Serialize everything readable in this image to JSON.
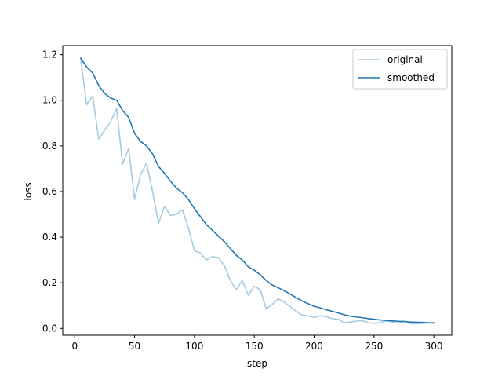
{
  "chart_data": {
    "type": "line",
    "title": "",
    "xlabel": "step",
    "ylabel": "loss",
    "xlim": [
      -10,
      315
    ],
    "ylim": [
      -0.03,
      1.24
    ],
    "xticks": [
      0,
      50,
      100,
      150,
      200,
      250,
      300
    ],
    "yticks": [
      0.0,
      0.2,
      0.4,
      0.6,
      0.8,
      1.0,
      1.2
    ],
    "grid": false,
    "legend_position": "top-right",
    "x": [
      5,
      10,
      15,
      20,
      25,
      30,
      35,
      40,
      45,
      50,
      55,
      60,
      65,
      70,
      75,
      80,
      85,
      90,
      95,
      100,
      105,
      110,
      115,
      120,
      125,
      130,
      135,
      140,
      145,
      150,
      155,
      160,
      165,
      170,
      175,
      180,
      185,
      190,
      195,
      200,
      205,
      210,
      215,
      220,
      225,
      230,
      235,
      240,
      245,
      250,
      255,
      260,
      265,
      270,
      275,
      280,
      285,
      290,
      295,
      300
    ],
    "series": [
      {
        "name": "original",
        "color": "#a6cbe0",
        "values": [
          1.18,
          0.98,
          1.02,
          0.83,
          0.87,
          0.905,
          0.965,
          0.72,
          0.79,
          0.565,
          0.675,
          0.725,
          0.6,
          0.46,
          0.535,
          0.495,
          0.5,
          0.52,
          0.44,
          0.34,
          0.33,
          0.3,
          0.315,
          0.31,
          0.275,
          0.21,
          0.17,
          0.21,
          0.145,
          0.185,
          0.17,
          0.085,
          0.105,
          0.13,
          0.115,
          0.095,
          0.075,
          0.058,
          0.055,
          0.048,
          0.055,
          0.052,
          0.043,
          0.04,
          0.025,
          0.028,
          0.032,
          0.034,
          0.025,
          0.022,
          0.024,
          0.033,
          0.028,
          0.022,
          0.032,
          0.022,
          0.02,
          0.022,
          0.024,
          0.022
        ]
      },
      {
        "name": "smoothed",
        "color": "#1f77b4",
        "values": [
          1.185,
          1.145,
          1.12,
          1.065,
          1.03,
          1.01,
          1.0,
          0.955,
          0.925,
          0.855,
          0.82,
          0.8,
          0.765,
          0.71,
          0.68,
          0.645,
          0.615,
          0.595,
          0.565,
          0.525,
          0.49,
          0.455,
          0.43,
          0.405,
          0.38,
          0.35,
          0.32,
          0.3,
          0.27,
          0.255,
          0.235,
          0.21,
          0.19,
          0.178,
          0.165,
          0.15,
          0.135,
          0.12,
          0.108,
          0.097,
          0.09,
          0.082,
          0.075,
          0.068,
          0.06,
          0.054,
          0.05,
          0.047,
          0.043,
          0.04,
          0.037,
          0.035,
          0.033,
          0.031,
          0.03,
          0.028,
          0.027,
          0.026,
          0.025,
          0.024
        ]
      }
    ]
  }
}
